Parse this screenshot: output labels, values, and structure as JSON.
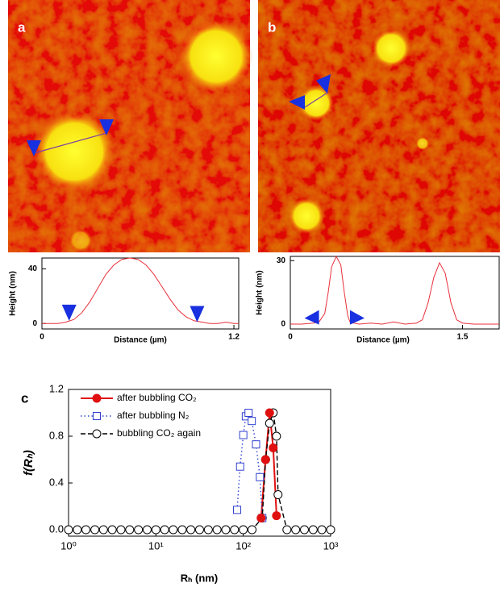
{
  "chart_data": [
    {
      "type": "line",
      "label": "a",
      "xlabel": "Distance (µm)",
      "ylabel": "Height (nm)",
      "xlim": [
        0,
        1.23
      ],
      "xticks": [
        0,
        1.2
      ],
      "ylim": [
        -4,
        48
      ],
      "yticks": [
        0,
        40
      ],
      "color": "#e8303a",
      "x": [
        0,
        0.1,
        0.15,
        0.2,
        0.25,
        0.3,
        0.35,
        0.4,
        0.45,
        0.5,
        0.55,
        0.6,
        0.65,
        0.7,
        0.75,
        0.8,
        0.85,
        0.9,
        0.95,
        1.0,
        1.05,
        1.1,
        1.15,
        1.2,
        1.23
      ],
      "values": [
        0,
        0,
        1,
        3,
        8,
        16,
        26,
        36,
        43,
        47,
        48,
        47,
        43,
        36,
        27,
        18,
        10,
        5,
        2,
        1,
        0,
        0,
        1,
        0,
        0
      ],
      "markers": {
        "x": [
          0.17,
          0.97
        ],
        "values": [
          2,
          1
        ]
      }
    },
    {
      "type": "line",
      "label": "b",
      "xlabel": "Distance (µm)",
      "ylabel": "Height (nm)",
      "xlim": [
        0,
        1.82
      ],
      "xticks": [
        0,
        1.5
      ],
      "ylim": [
        -2.3,
        32
      ],
      "yticks": [
        0,
        30
      ],
      "color": "#e8303a",
      "x": [
        0,
        0.1,
        0.2,
        0.25,
        0.3,
        0.33,
        0.36,
        0.4,
        0.44,
        0.47,
        0.5,
        0.52,
        0.55,
        0.6,
        0.7,
        0.8,
        0.9,
        1.0,
        1.1,
        1.15,
        1.2,
        1.25,
        1.3,
        1.35,
        1.4,
        1.45,
        1.5,
        1.6,
        1.7,
        1.82
      ],
      "values": [
        0,
        0,
        0.5,
        1,
        5,
        15,
        27,
        32,
        28,
        15,
        4,
        1,
        0.5,
        0,
        0.5,
        0,
        1,
        0,
        0.5,
        2,
        10,
        22,
        29,
        24,
        10,
        2,
        0.5,
        0,
        0,
        0
      ],
      "markers": {
        "x": [
          0.25,
          0.52
        ],
        "values": [
          0.5,
          0.5
        ]
      }
    },
    {
      "type": "line",
      "label": "c",
      "xlabel": "Rₕ (nm)",
      "ylabel": "f(Rₕ)",
      "log_x": true,
      "xlim": [
        1,
        1000
      ],
      "xticks": [
        {
          "value": 1,
          "label": "10⁰"
        },
        {
          "value": 10,
          "label": "10¹"
        },
        {
          "value": 100,
          "label": "10²"
        },
        {
          "value": 1000,
          "label": "10³"
        }
      ],
      "ylim": [
        -0.055,
        1.2
      ],
      "yticks": [
        {
          "value": 0,
          "label": "0.0"
        },
        {
          "value": 0.4,
          "label": "0.4"
        },
        {
          "value": 0.8,
          "label": "0.8"
        },
        {
          "value": 1.2,
          "label": "1.2"
        }
      ],
      "series": [
        {
          "name": "after bubbling CO₂",
          "color": "#e01010",
          "marker": "circle",
          "filled": true,
          "linestyle": "solid",
          "x": [
            160,
            180,
            200,
            220,
            240
          ],
          "values": [
            0.1,
            0.6,
            1.0,
            0.7,
            0.12
          ]
        },
        {
          "name": "after bubbling N₂",
          "color": "#3040d0",
          "marker": "square",
          "filled": false,
          "linestyle": "dotted",
          "x": [
            85,
            92,
            100,
            107,
            115,
            125,
            140,
            155,
            165
          ],
          "values": [
            0.17,
            0.54,
            0.81,
            0.97,
            1.0,
            0.93,
            0.73,
            0.45,
            0.1
          ]
        },
        {
          "name": "bubbling CO₂ again",
          "color": "#000000",
          "marker": "circle",
          "filled": false,
          "linestyle": "dashed",
          "x": [
            1,
            1.26,
            1.58,
            2,
            2.51,
            3.16,
            3.98,
            5.01,
            6.31,
            7.94,
            10,
            12.6,
            15.8,
            20,
            25.1,
            31.6,
            39.8,
            50.1,
            63.1,
            79.4,
            100,
            126,
            165,
            180,
            200,
            220,
            240,
            250,
            316,
            398,
            501,
            631,
            794,
            1000
          ],
          "values": [
            0,
            0,
            0,
            0,
            0,
            0,
            0,
            0,
            0,
            0,
            0,
            0,
            0,
            0,
            0,
            0,
            0,
            0,
            0,
            0,
            0,
            0,
            0.1,
            0.6,
            0.91,
            1.0,
            0.8,
            0.3,
            0,
            0,
            0,
            0,
            0,
            0
          ]
        }
      ]
    }
  ]
}
